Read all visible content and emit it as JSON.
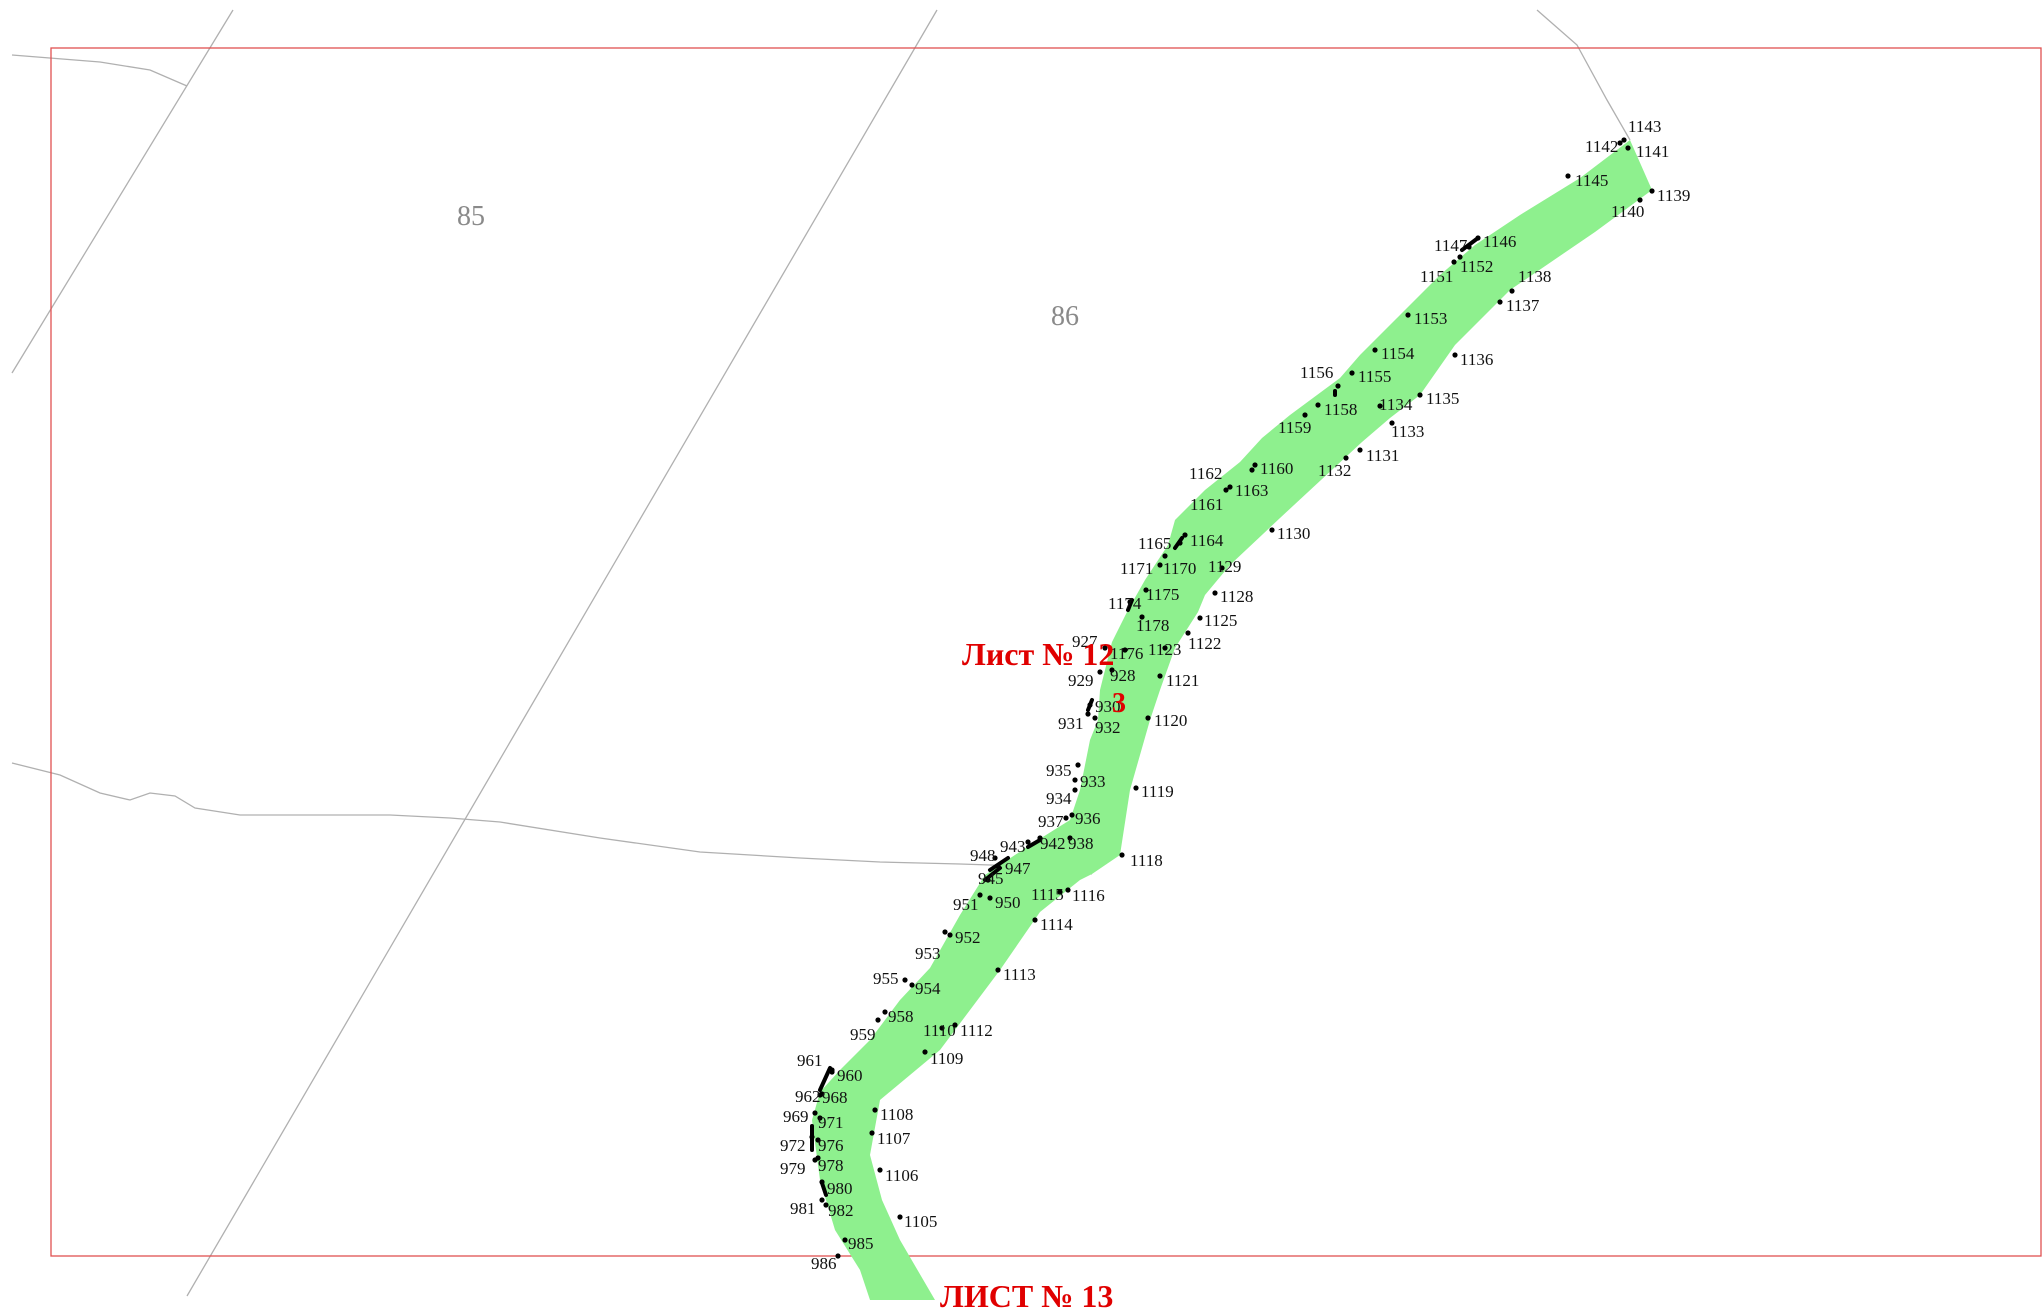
{
  "colors": {
    "frame": "#e05050",
    "parcel_fill": "#8ef08e",
    "annotation_red": "#e00000",
    "quarter_text": "#8a8a8a",
    "boundary_line": "#b0b0b0"
  },
  "map": {
    "quarters": [
      {
        "id": "q85",
        "label": "85"
      },
      {
        "id": "q86",
        "label": "86"
      }
    ],
    "parcel_label": "3",
    "sheets": {
      "current": "Лист № 12",
      "next": "ЛИСТ № 13"
    },
    "points": [
      "1143",
      "1142",
      "1141",
      "1145",
      "1139",
      "1140",
      "1147",
      "1146",
      "1151",
      "1152",
      "1138",
      "1137",
      "1153",
      "1154",
      "1136",
      "1156",
      "1155",
      "1134",
      "1135",
      "1158",
      "1159",
      "1133",
      "1131",
      "1132",
      "1162",
      "1160",
      "1163",
      "1161",
      "1130",
      "1165",
      "1164",
      "1171",
      "1170",
      "1129",
      "1174",
      "1175",
      "1128",
      "1178",
      "1125",
      "927",
      "1176",
      "1123",
      "1122",
      "929",
      "928",
      "1121",
      "930",
      "931",
      "932",
      "1120",
      "935",
      "933",
      "934",
      "1119",
      "937",
      "936",
      "943",
      "942",
      "938",
      "948",
      "947",
      "945",
      "1118",
      "951",
      "950",
      "1115",
      "1116",
      "1114",
      "953",
      "952",
      "955",
      "954",
      "1113",
      "958",
      "959",
      "1110",
      "1112",
      "1109",
      "961",
      "960",
      "962",
      "968",
      "969",
      "971",
      "1108",
      "972",
      "976",
      "1107",
      "979",
      "978",
      "1106",
      "980",
      "981",
      "982",
      "1105",
      "985",
      "986"
    ]
  }
}
